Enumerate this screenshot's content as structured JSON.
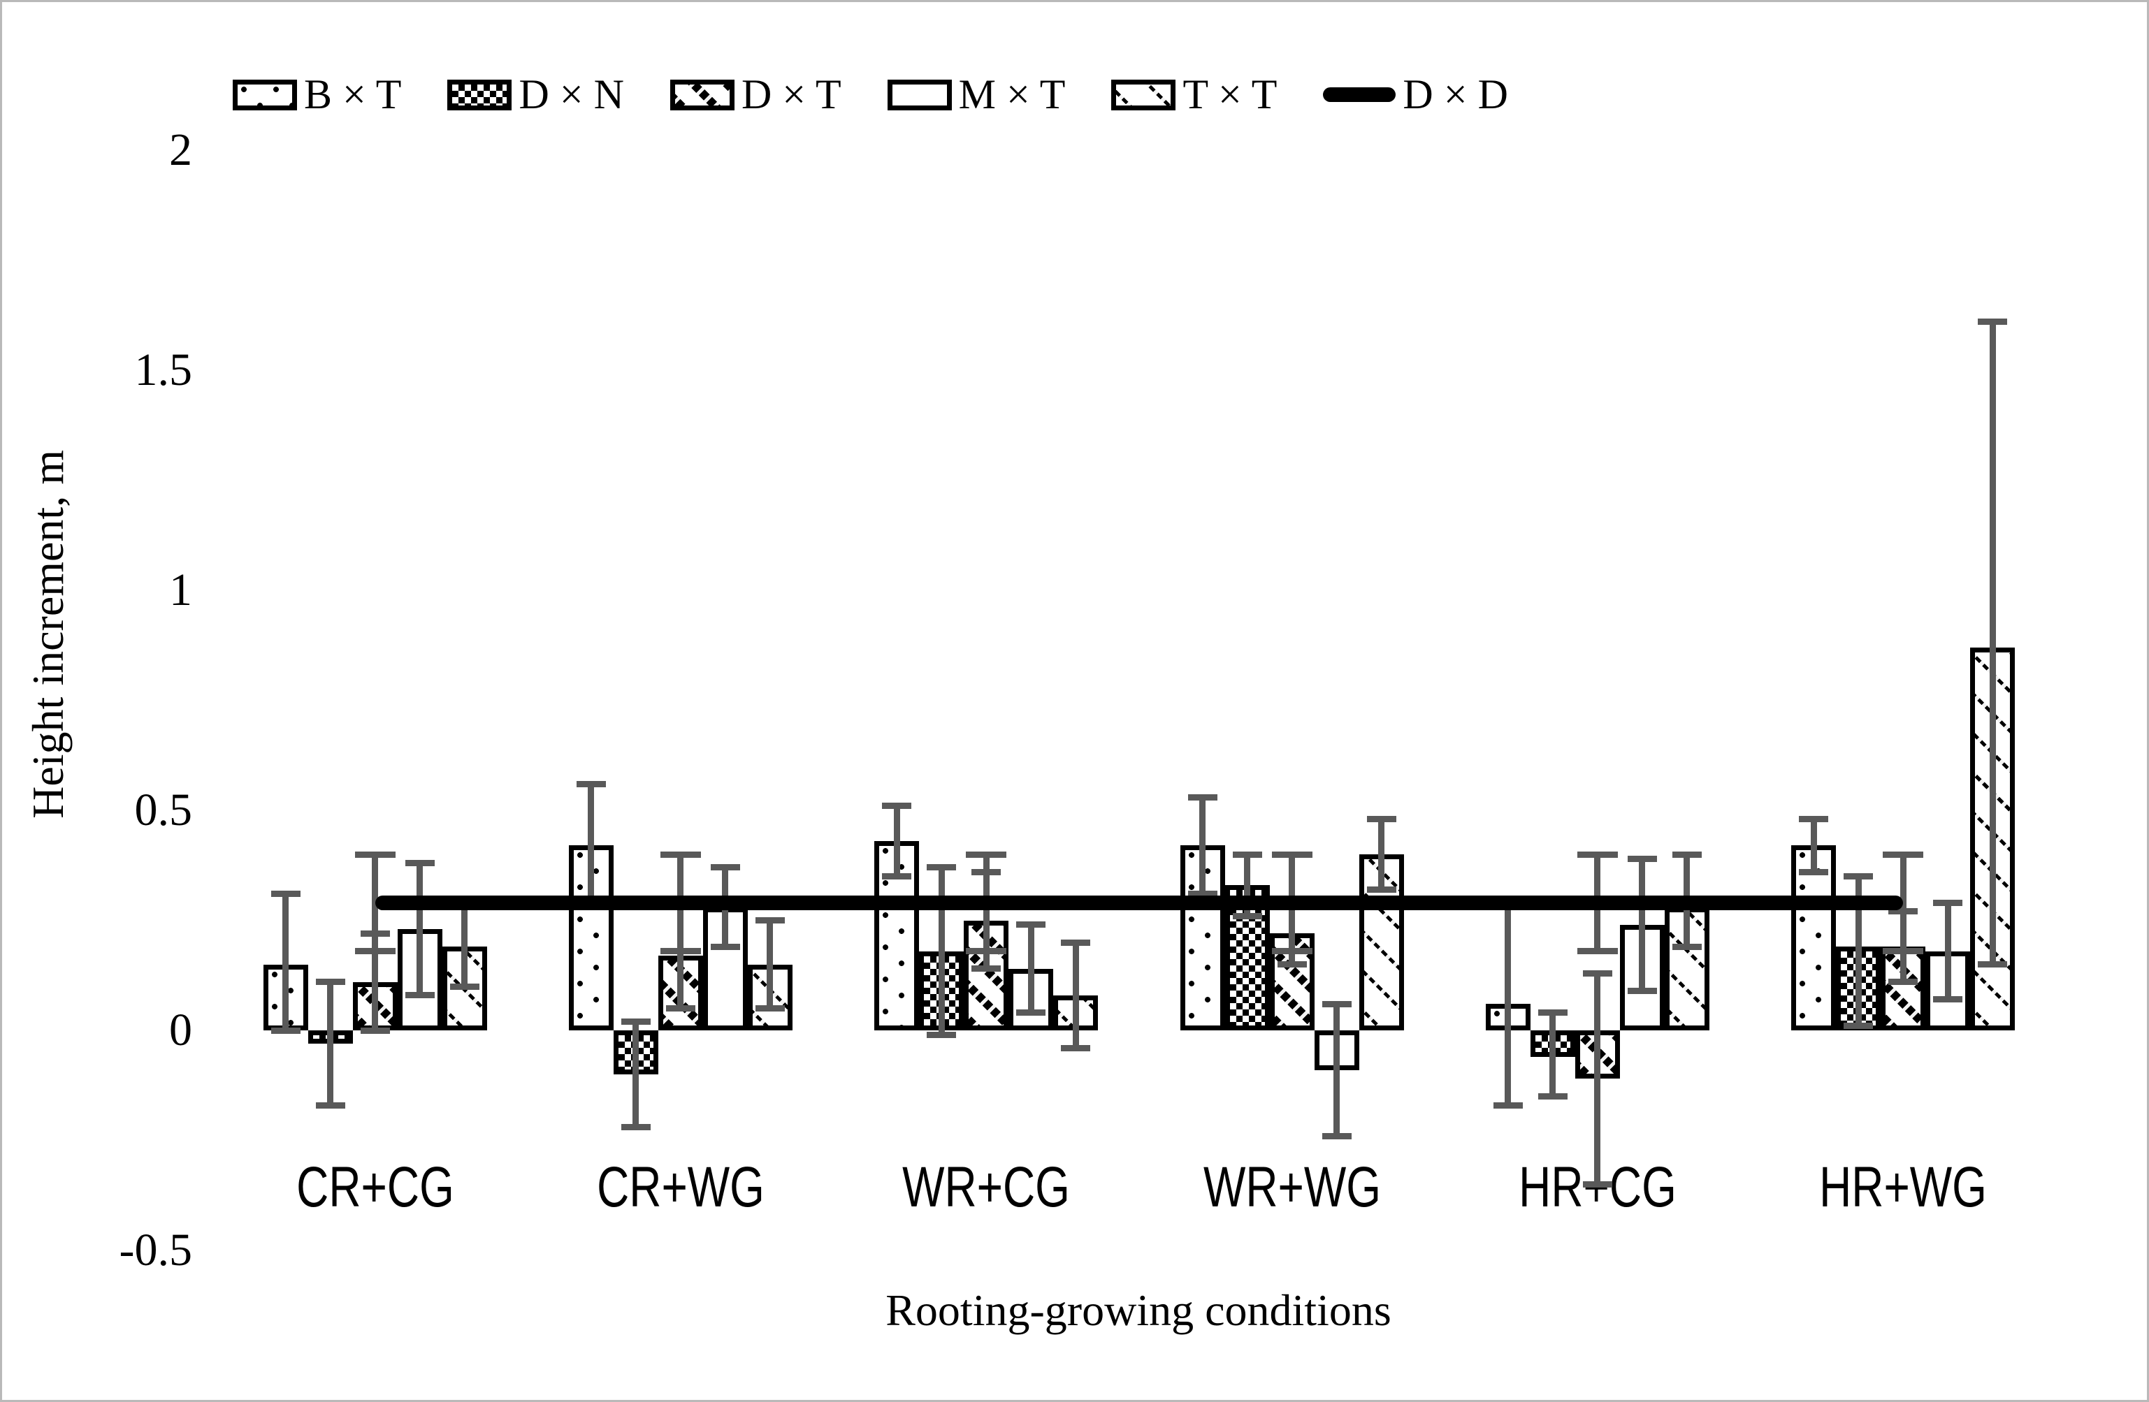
{
  "figure": {
    "background": "#ffffff",
    "border_color": "#b9b9b9",
    "error_bar_color": "#595959",
    "bar_border_color": "#000000",
    "bar_fill_color": "#ffffff",
    "line_color": "#000000"
  },
  "chart_data": {
    "type": "bar",
    "title": "",
    "xlabel": "Rooting-growing conditions",
    "ylabel": "Height increment, m",
    "ylim": [
      -0.5,
      2
    ],
    "grid": false,
    "legend_position": "top",
    "ytick_labels": [
      "2",
      "1.5",
      "1",
      "0.5",
      "0",
      "-0.5"
    ],
    "ytick_values": [
      2,
      1.5,
      1,
      0.5,
      0,
      -0.5
    ],
    "categories": [
      "CR+CG",
      "CR+WG",
      "WR+CG",
      "WR+WG",
      "HR+CG",
      "HR+WG"
    ],
    "series": [
      {
        "name": "B × T",
        "pattern": "bt",
        "values": [
          0.15,
          0.42,
          0.43,
          0.42,
          0.06,
          0.42
        ],
        "err_low": [
          0.0,
          0.28,
          0.35,
          0.31,
          -0.17,
          0.36
        ],
        "err_high": [
          0.31,
          0.56,
          0.51,
          0.53,
          0.29,
          0.48
        ]
      },
      {
        "name": "D × N",
        "pattern": "dn",
        "values": [
          -0.03,
          -0.1,
          0.18,
          0.33,
          -0.06,
          0.19
        ],
        "err_low": [
          -0.17,
          -0.22,
          -0.01,
          0.26,
          -0.15,
          0.01
        ],
        "err_high": [
          0.11,
          0.02,
          0.37,
          0.4,
          0.04,
          0.35
        ]
      },
      {
        "name": "D × T",
        "pattern": "dt",
        "values": [
          0.11,
          0.17,
          0.25,
          0.22,
          -0.11,
          0.19
        ],
        "err_low": [
          0.0,
          0.05,
          0.14,
          0.15,
          -0.35,
          0.11
        ],
        "err_high": [
          0.22,
          0.29,
          0.36,
          0.29,
          0.13,
          0.27
        ]
      },
      {
        "name": "M × T",
        "pattern": "mt",
        "values": [
          0.23,
          0.28,
          0.14,
          -0.09,
          0.24,
          0.18
        ],
        "err_low": [
          0.08,
          0.19,
          0.04,
          -0.24,
          0.09,
          0.07
        ],
        "err_high": [
          0.38,
          0.37,
          0.24,
          0.06,
          0.39,
          0.29
        ]
      },
      {
        "name": "T × T",
        "pattern": "tt",
        "values": [
          0.19,
          0.15,
          0.08,
          0.4,
          0.28,
          0.87
        ],
        "err_low": [
          0.1,
          0.05,
          -0.04,
          0.32,
          0.19,
          0.15
        ],
        "err_high": [
          0.28,
          0.25,
          0.2,
          0.48,
          0.4,
          1.61
        ]
      }
    ],
    "line_series": {
      "name": "D × D",
      "pattern": "dd",
      "value": 0.29,
      "err_low": 0.18,
      "err_high": 0.4
    }
  }
}
